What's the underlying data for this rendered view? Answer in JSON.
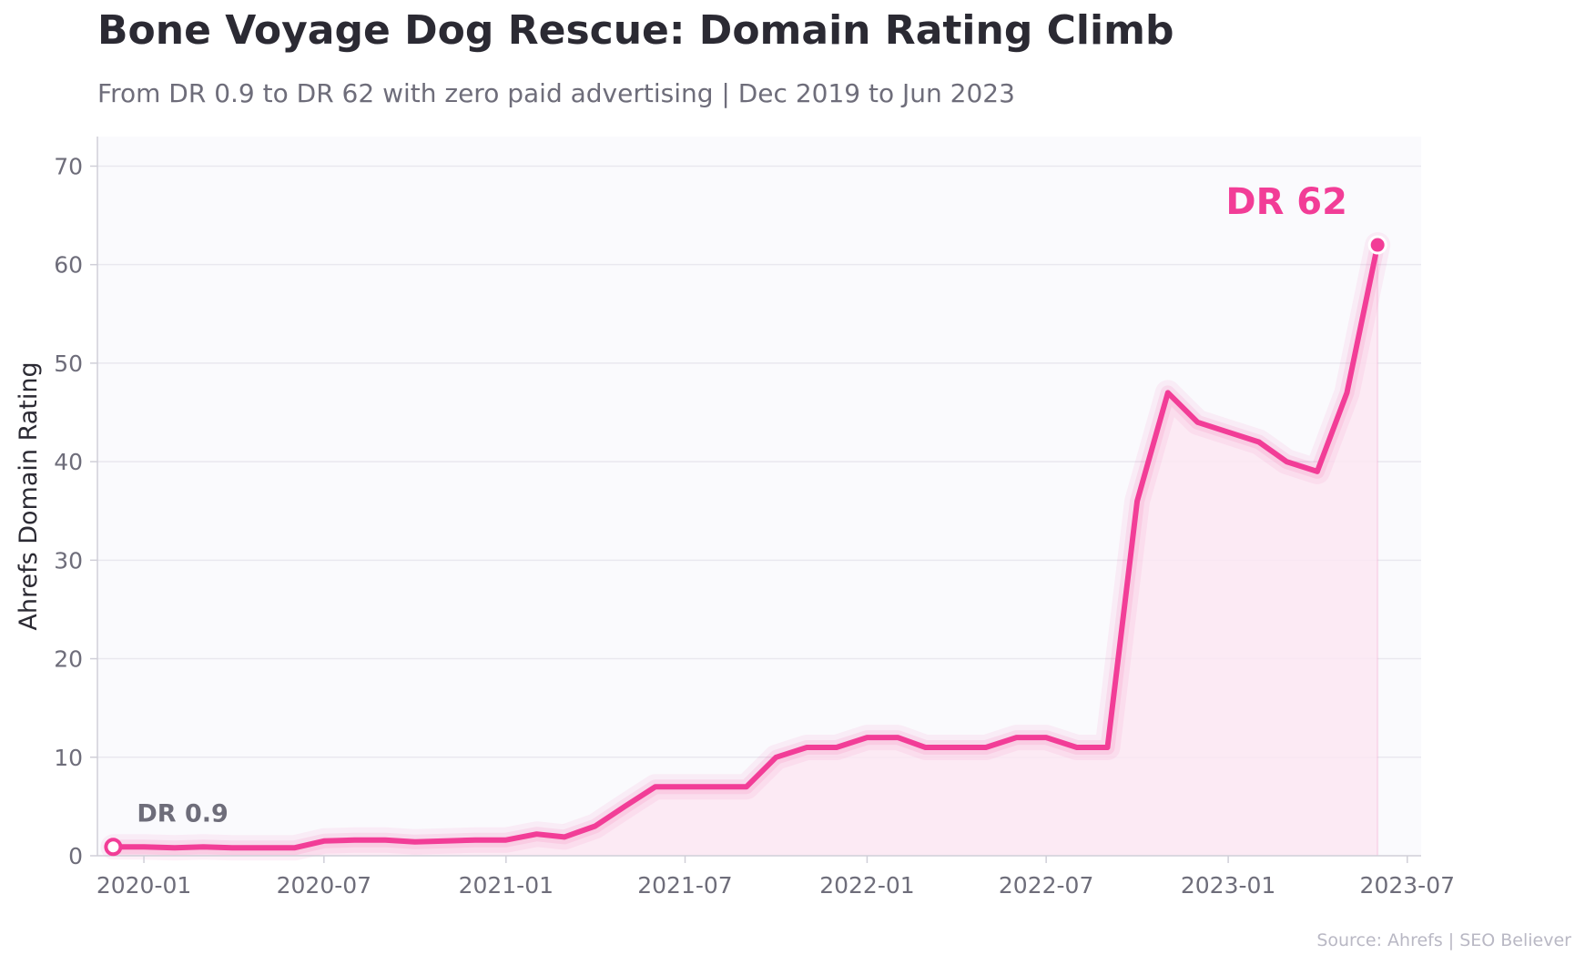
{
  "header": {
    "title": "Bone Voyage Dog Rescue: Domain Rating Climb",
    "subtitle": "From DR 0.9 to DR 62 with zero paid advertising  |  Dec 2019 to Jun 2023"
  },
  "footer": {
    "source": "Source: Ahrefs  |  SEO Believer"
  },
  "colors": {
    "line": "#f23d97",
    "fill": "#fbe6f2",
    "plot_background": "#fafafd",
    "grid": "#e9e8ef",
    "axis": "#d0cfd8",
    "tick_text": "#6e6d7a"
  },
  "chart_data": {
    "type": "line",
    "title": "Bone Voyage Dog Rescue: Domain Rating Climb",
    "subtitle": "From DR 0.9 to DR 62 with zero paid advertising  |  Dec 2019 to Jun 2023",
    "xlabel": "",
    "ylabel": "Ahrefs Domain Rating",
    "ylim": [
      0,
      73
    ],
    "yticks": [
      0,
      10,
      20,
      30,
      40,
      50,
      60,
      70
    ],
    "xlim": [
      "2019-11-15",
      "2023-07-15"
    ],
    "xticks": [
      "2020-01",
      "2020-07",
      "2021-01",
      "2021-07",
      "2022-01",
      "2022-07",
      "2023-01",
      "2023-07"
    ],
    "grid": "horizontal",
    "series": [
      {
        "x": [
          "2019-12-01",
          "2020-01-01",
          "2020-02-01",
          "2020-03-01",
          "2020-04-01",
          "2020-05-01",
          "2020-06-01",
          "2020-07-01",
          "2020-08-01",
          "2020-09-01",
          "2020-10-01",
          "2020-11-01",
          "2020-12-01",
          "2021-01-01",
          "2021-02-01",
          "2021-03-01",
          "2021-04-01",
          "2021-05-01",
          "2021-06-01",
          "2021-07-01",
          "2021-08-01",
          "2021-09-01",
          "2021-10-01",
          "2021-11-01",
          "2021-12-01",
          "2022-01-01",
          "2022-02-01",
          "2022-03-01",
          "2022-04-01",
          "2022-05-01",
          "2022-06-01",
          "2022-07-01",
          "2022-08-01",
          "2022-09-01",
          "2022-10-01",
          "2022-11-01",
          "2022-12-01",
          "2023-01-01",
          "2023-02-01",
          "2023-03-01",
          "2023-04-01",
          "2023-05-01",
          "2023-06-01"
        ],
        "values": [
          0.9,
          0.9,
          0.8,
          0.9,
          0.8,
          0.8,
          0.8,
          1.5,
          1.6,
          1.6,
          1.4,
          1.5,
          1.6,
          1.6,
          2.2,
          1.9,
          3.0,
          5.0,
          7.0,
          7.0,
          7.0,
          7.0,
          10.0,
          11.0,
          11.0,
          12.0,
          12.0,
          11.0,
          11.0,
          11.0,
          12.0,
          12.0,
          11.0,
          11.0,
          36.0,
          47.0,
          44.0,
          43.0,
          42.0,
          40.0,
          39.0,
          47.0,
          62.0
        ]
      }
    ],
    "annotations": [
      {
        "text": "DR 0.9",
        "x": "2019-12-01",
        "y": 0.9
      },
      {
        "text": "DR 62",
        "x": "2023-06-01",
        "y": 62
      }
    ]
  }
}
